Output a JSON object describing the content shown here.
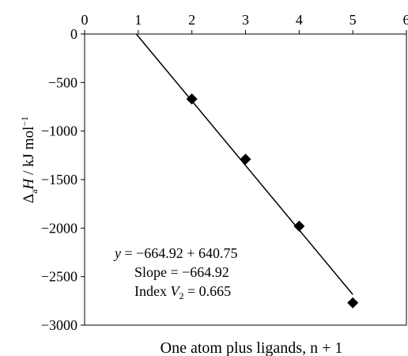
{
  "chart_data": {
    "type": "scatter",
    "title": "",
    "xlabel": "One atom plus ligands, n + 1",
    "ylabel": "ΔaH / kJ mol⁻¹",
    "xlim": [
      0,
      6
    ],
    "ylim": [
      -3000,
      0
    ],
    "x_ticks": [
      0,
      1,
      2,
      3,
      4,
      5,
      6
    ],
    "y_ticks": [
      0,
      -500,
      -1000,
      -1500,
      -2000,
      -2500,
      -3000
    ],
    "x_tick_labels": [
      "0",
      "1",
      "2",
      "3",
      "4",
      "5",
      "6"
    ],
    "y_tick_labels": [
      "0",
      "−500",
      "−1000",
      "−1500",
      "−2000",
      "−2500",
      "−3000"
    ],
    "x_axis_position": "top",
    "grid": false,
    "legend": false,
    "series": [
      {
        "marker": "diamond",
        "color": "#000000",
        "points": [
          {
            "x": 2,
            "y": -670
          },
          {
            "x": 3,
            "y": -1290
          },
          {
            "x": 4,
            "y": -1980
          },
          {
            "x": 5,
            "y": -2770
          }
        ]
      }
    ],
    "fit_line": {
      "slope": -664.92,
      "intercept": 640.75,
      "x_range": [
        1,
        5
      ],
      "color": "#000000"
    },
    "annotations": {
      "equation": "y = −664.92 + 640.75",
      "slope": "Slope = −664.92",
      "index": "Index V2 = 0.665"
    }
  }
}
